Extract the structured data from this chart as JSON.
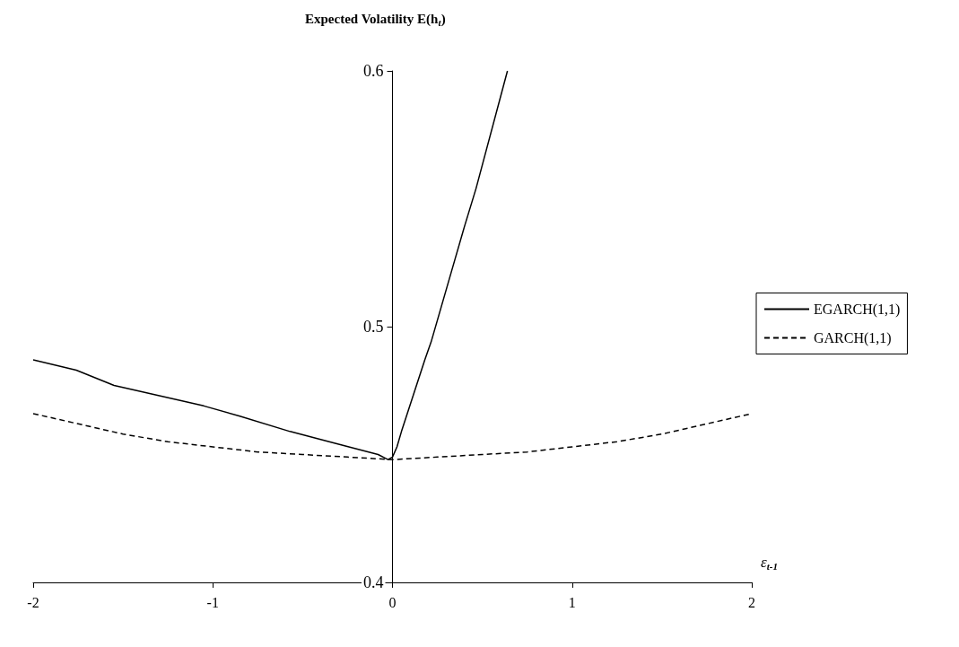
{
  "chart_data": {
    "type": "line",
    "title": "Expected Volatility E(h$_{t}$)",
    "xlabel": "ε$_{t-1}$",
    "xlim": [
      -2,
      2
    ],
    "xticks": [
      -2,
      -1,
      0,
      1,
      2
    ],
    "ylim": [
      0.4,
      0.6
    ],
    "yticks": [
      0.4,
      0.5,
      0.6
    ],
    "grid": false,
    "legend": "right",
    "marker": "none",
    "series": [
      {
        "name": "EGARCH(1,1)",
        "color": "#000000",
        "line_style": "solid",
        "x": [
          -2,
          -1.76,
          -1.55,
          -1.05,
          -0.85,
          -0.57,
          -0.3,
          -0.08,
          -0.025,
          0,
          0.025,
          0.05,
          0.18,
          0.215,
          0.4,
          0.465,
          0.64
        ],
        "values": [
          0.487,
          0.483,
          0.477,
          0.469,
          0.465,
          0.459,
          0.454,
          0.45,
          0.448,
          0.449,
          0.453,
          0.459,
          0.487,
          0.494,
          0.539,
          0.554,
          0.6
        ]
      },
      {
        "name": "GARCH(1,1)",
        "color": "#000000",
        "line_style": "dashed",
        "x": [
          -2,
          -1.75,
          -1.5,
          -1.25,
          -1,
          -0.75,
          -0.5,
          -0.25,
          0,
          0.25,
          0.5,
          0.75,
          1,
          1.25,
          1.5,
          1.75,
          2
        ],
        "values": [
          0.466,
          0.462,
          0.458,
          0.455,
          0.453,
          0.451,
          0.45,
          0.449,
          0.448,
          0.449,
          0.45,
          0.451,
          0.453,
          0.455,
          0.458,
          0.462,
          0.466
        ]
      }
    ]
  }
}
